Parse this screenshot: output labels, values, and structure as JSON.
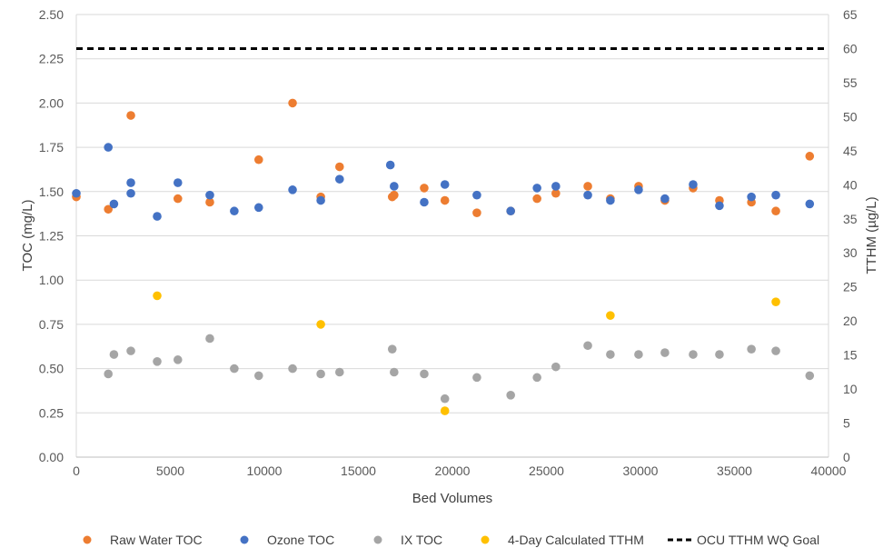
{
  "chart_data": {
    "type": "scatter",
    "x_axis": {
      "label": "Bed Volumes",
      "min": 0,
      "max": 40000,
      "step": 5000,
      "ticks": [
        "0",
        "5000",
        "10000",
        "15000",
        "20000",
        "25000",
        "30000",
        "35000",
        "40000"
      ]
    },
    "y_axis_left": {
      "label": "TOC (mg/L)",
      "min": 0,
      "max": 2.5,
      "step": 0.25,
      "ticks": [
        "0.00",
        "0.25",
        "0.50",
        "0.75",
        "1.00",
        "1.25",
        "1.50",
        "1.75",
        "2.00",
        "2.25",
        "2.50"
      ]
    },
    "y_axis_right": {
      "label": "TTHM (µg/L)",
      "min": 0,
      "max": 65,
      "step": 5,
      "ticks": [
        "0",
        "5",
        "10",
        "15",
        "20",
        "25",
        "30",
        "35",
        "40",
        "45",
        "50",
        "55",
        "60",
        "65"
      ]
    },
    "grid": "horizontal",
    "legend_position": "bottom",
    "series": [
      {
        "name": "Raw Water TOC",
        "axis": "left",
        "color": "#ED7D31",
        "marker": "circle",
        "points": [
          [
            0,
            1.47
          ],
          [
            1700,
            1.4
          ],
          [
            2900,
            1.93
          ],
          [
            5400,
            1.46
          ],
          [
            7100,
            1.44
          ],
          [
            9700,
            1.68
          ],
          [
            11500,
            2.0
          ],
          [
            13000,
            1.47
          ],
          [
            14000,
            1.64
          ],
          [
            16800,
            1.47
          ],
          [
            16900,
            1.48
          ],
          [
            18500,
            1.52
          ],
          [
            19600,
            1.45
          ],
          [
            21300,
            1.38
          ],
          [
            23100,
            1.39
          ],
          [
            24500,
            1.46
          ],
          [
            25500,
            1.49
          ],
          [
            27200,
            1.53
          ],
          [
            28400,
            1.46
          ],
          [
            29900,
            1.53
          ],
          [
            31300,
            1.45
          ],
          [
            32800,
            1.52
          ],
          [
            34200,
            1.45
          ],
          [
            35900,
            1.44
          ],
          [
            37200,
            1.39
          ],
          [
            39000,
            1.7
          ]
        ]
      },
      {
        "name": "Ozone TOC",
        "axis": "left",
        "color": "#4472C4",
        "marker": "circle",
        "points": [
          [
            0,
            1.49
          ],
          [
            1700,
            1.75
          ],
          [
            2000,
            1.43
          ],
          [
            2900,
            1.55
          ],
          [
            2900,
            1.49
          ],
          [
            4300,
            1.36
          ],
          [
            5400,
            1.55
          ],
          [
            7100,
            1.48
          ],
          [
            8400,
            1.39
          ],
          [
            9700,
            1.41
          ],
          [
            11500,
            1.51
          ],
          [
            13000,
            1.45
          ],
          [
            14000,
            1.57
          ],
          [
            16700,
            1.65
          ],
          [
            16900,
            1.53
          ],
          [
            18500,
            1.44
          ],
          [
            19600,
            1.54
          ],
          [
            21300,
            1.48
          ],
          [
            23100,
            1.39
          ],
          [
            24500,
            1.52
          ],
          [
            25500,
            1.53
          ],
          [
            27200,
            1.48
          ],
          [
            28400,
            1.45
          ],
          [
            29900,
            1.51
          ],
          [
            31300,
            1.46
          ],
          [
            32800,
            1.54
          ],
          [
            34200,
            1.42
          ],
          [
            35900,
            1.47
          ],
          [
            37200,
            1.48
          ],
          [
            39000,
            1.43
          ]
        ]
      },
      {
        "name": "IX TOC",
        "axis": "left",
        "color": "#A5A5A5",
        "marker": "circle",
        "points": [
          [
            1700,
            0.47
          ],
          [
            2000,
            0.58
          ],
          [
            2900,
            0.6
          ],
          [
            4300,
            0.54
          ],
          [
            5400,
            0.55
          ],
          [
            7100,
            0.67
          ],
          [
            8400,
            0.5
          ],
          [
            9700,
            0.46
          ],
          [
            11500,
            0.5
          ],
          [
            13000,
            0.47
          ],
          [
            14000,
            0.48
          ],
          [
            16800,
            0.61
          ],
          [
            16900,
            0.48
          ],
          [
            18500,
            0.47
          ],
          [
            19600,
            0.33
          ],
          [
            21300,
            0.45
          ],
          [
            23100,
            0.35
          ],
          [
            24500,
            0.45
          ],
          [
            25500,
            0.51
          ],
          [
            27200,
            0.63
          ],
          [
            28400,
            0.58
          ],
          [
            29900,
            0.58
          ],
          [
            31300,
            0.59
          ],
          [
            32800,
            0.58
          ],
          [
            34200,
            0.58
          ],
          [
            35900,
            0.61
          ],
          [
            37200,
            0.6
          ],
          [
            39000,
            0.46
          ]
        ]
      },
      {
        "name": "4-Day Calculated TTHM",
        "axis": "right",
        "color": "#FFC000",
        "marker": "circle",
        "points": [
          [
            4300,
            23.7
          ],
          [
            13000,
            19.5
          ],
          [
            19600,
            6.8
          ],
          [
            28400,
            20.8
          ],
          [
            37200,
            22.8
          ]
        ]
      },
      {
        "name": "OCU TTHM WQ Goal",
        "axis": "right",
        "color": "#000000",
        "marker": "dashed-line",
        "points": [
          [
            0,
            60
          ],
          [
            40000,
            60
          ]
        ]
      }
    ]
  }
}
